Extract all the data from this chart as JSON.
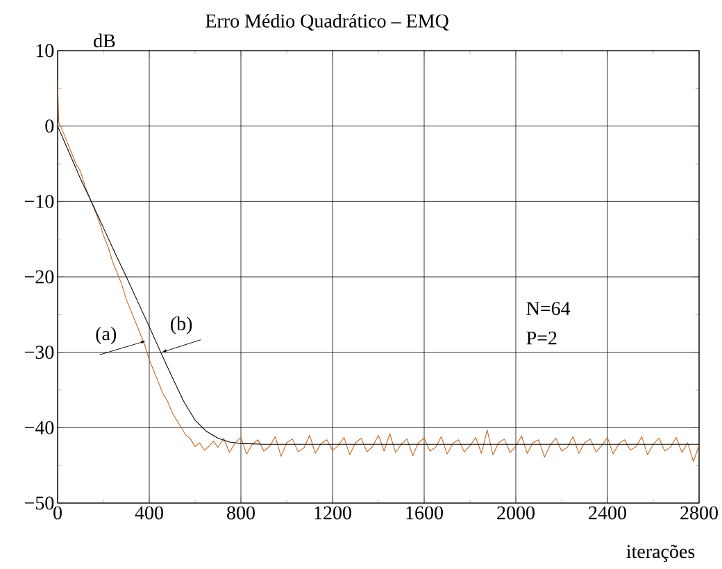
{
  "chart_data": {
    "type": "line",
    "title": "Erro Médio Quadrático – EMQ",
    "xlabel": "iterações",
    "ylabel": "dB",
    "xlim": [
      0,
      2800
    ],
    "xticks": [
      0,
      400,
      800,
      1200,
      1600,
      2000,
      2400,
      2800
    ],
    "ylim": [
      -50,
      10
    ],
    "yticks": [
      {
        "value": -50,
        "label": "−50"
      },
      {
        "value": -40,
        "label": "−40"
      },
      {
        "value": -30,
        "label": "−30"
      },
      {
        "value": -20,
        "label": "−20"
      },
      {
        "value": -10,
        "label": "−10"
      },
      0,
      10
    ],
    "grid": true,
    "marker": "none",
    "line_style": "solid",
    "series": [
      {
        "color": "#c0651a",
        "x": [
          0,
          5,
          20,
          40,
          60,
          80,
          100,
          120,
          140,
          160,
          180,
          200,
          220,
          240,
          260,
          280,
          300,
          320,
          340,
          360,
          380,
          400,
          420,
          440,
          460,
          480,
          500,
          520,
          540,
          560,
          580,
          600,
          620,
          640,
          660,
          680,
          700,
          725,
          750,
          775,
          800,
          825,
          850,
          875,
          900,
          925,
          950,
          975,
          1000,
          1025,
          1050,
          1075,
          1100,
          1125,
          1150,
          1175,
          1200,
          1225,
          1250,
          1275,
          1300,
          1325,
          1350,
          1375,
          1400,
          1425,
          1450,
          1475,
          1500,
          1525,
          1550,
          1575,
          1600,
          1625,
          1650,
          1675,
          1700,
          1725,
          1750,
          1775,
          1800,
          1825,
          1850,
          1875,
          1900,
          1925,
          1950,
          1975,
          2000,
          2025,
          2050,
          2075,
          2100,
          2125,
          2150,
          2175,
          2200,
          2225,
          2250,
          2275,
          2300,
          2325,
          2350,
          2375,
          2400,
          2425,
          2450,
          2475,
          2500,
          2525,
          2550,
          2575,
          2600,
          2625,
          2650,
          2675,
          2700,
          2725,
          2750,
          2775,
          2800
        ],
        "values": [
          6,
          0.5,
          -0.5,
          -2,
          -3.5,
          -5,
          -6,
          -8,
          -9.5,
          -11,
          -12.5,
          -14.5,
          -16,
          -18,
          -19.5,
          -21,
          -23,
          -24.5,
          -26,
          -27.5,
          -29,
          -31,
          -32.5,
          -34,
          -35.5,
          -36.5,
          -38,
          -39,
          -40,
          -41,
          -41.5,
          -42.5,
          -42,
          -43,
          -42.5,
          -41.8,
          -42.6,
          -41.4,
          -43.3,
          -42.0,
          -41.3,
          -43.5,
          -42.2,
          -41.6,
          -43.1,
          -42.5,
          -41.2,
          -43.8,
          -42.0,
          -41.5,
          -43.2,
          -42.7,
          -41.0,
          -43.4,
          -42.1,
          -41.6,
          -43.0,
          -42.4,
          -41.3,
          -43.6,
          -42.0,
          -41.4,
          -43.2,
          -42.5,
          -41.0,
          -43.1,
          -40.8,
          -43.3,
          -42.2,
          -41.5,
          -43.7,
          -42.0,
          -41.4,
          -43.1,
          -42.6,
          -41.2,
          -43.5,
          -42.1,
          -41.6,
          -43.2,
          -42.4,
          -41.3,
          -43.4,
          -40.3,
          -43.6,
          -42.0,
          -41.5,
          -43.3,
          -42.5,
          -41.1,
          -43.4,
          -42.0,
          -41.6,
          -43.9,
          -42.3,
          -41.4,
          -43.1,
          -42.6,
          -41.2,
          -43.4,
          -42.0,
          -41.5,
          -43.2,
          -42.4,
          -41.3,
          -43.5,
          -42.1,
          -41.6,
          -43.0,
          -42.5,
          -41.2,
          -43.6,
          -42.2,
          -41.4,
          -43.1,
          -42.6,
          -41.3,
          -43.3,
          -42.0,
          -44.5,
          -42.3
        ]
      },
      {
        "color": "#000000",
        "x": [
          0,
          50,
          100,
          150,
          200,
          250,
          300,
          350,
          400,
          450,
          500,
          550,
          600,
          650,
          700,
          750,
          800,
          900,
          1000,
          2800
        ],
        "values": [
          0,
          -3.5,
          -7,
          -10.2,
          -13.5,
          -16.8,
          -20,
          -23.3,
          -26.6,
          -30,
          -33.3,
          -36.5,
          -39,
          -40.5,
          -41.4,
          -41.9,
          -42.1,
          -42.2,
          -42.2,
          -42.2
        ]
      }
    ],
    "annotations": [
      {
        "text": "(a)",
        "x": 385,
        "y": -28.5
      },
      {
        "text": "(b)",
        "x": 455,
        "y": -30
      },
      "N=64",
      "P=2"
    ]
  }
}
